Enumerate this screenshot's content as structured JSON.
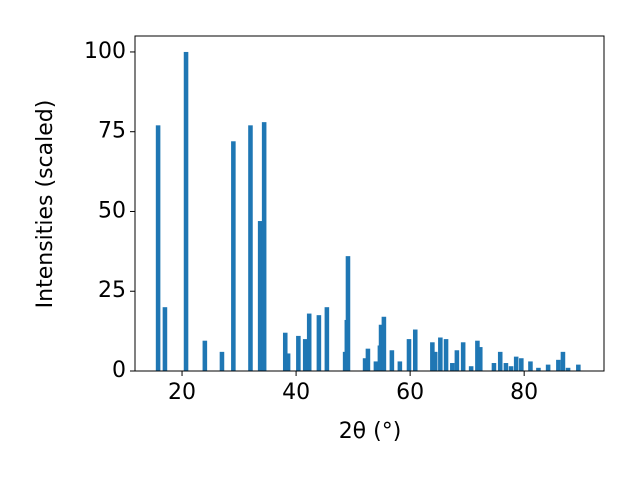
{
  "chart_data": {
    "type": "bar",
    "xlabel": "2θ (°)",
    "ylabel": "Intensities (scaled)",
    "color": "#1f77b4",
    "x": [
      15.8,
      17.0,
      20.7,
      24.0,
      27.0,
      29.0,
      32.0,
      33.7,
      34.4,
      38.1,
      38.6,
      40.4,
      41.6,
      42.3,
      44.0,
      45.4,
      48.6,
      48.9,
      49.1,
      52.1,
      52.6,
      54.0,
      54.7,
      54.9,
      55.4,
      56.8,
      58.2,
      59.8,
      60.9,
      63.9,
      64.4,
      65.3,
      66.3,
      67.4,
      68.2,
      69.3,
      70.7,
      71.8,
      72.3,
      74.7,
      75.8,
      76.8,
      77.7,
      78.6,
      79.5,
      81.1,
      82.5,
      84.2,
      86.0,
      86.8,
      87.7,
      89.5
    ],
    "values": [
      77,
      20,
      100,
      9.5,
      6,
      72,
      77,
      47,
      78,
      12,
      5.5,
      11,
      10,
      18,
      17.5,
      20,
      6,
      16,
      36,
      4,
      7,
      3,
      8,
      14.5,
      17,
      6.5,
      3,
      10,
      13,
      9,
      6,
      10.5,
      10,
      2.5,
      6.5,
      9,
      1.5,
      9.5,
      7.5,
      2.5,
      6,
      2.5,
      1.5,
      4.5,
      4,
      3,
      1,
      2,
      3.5,
      6,
      1,
      2
    ],
    "xlim": [
      11.75,
      94.0
    ],
    "xticks": [
      20,
      40,
      60,
      80
    ],
    "ylim": [
      0,
      105
    ],
    "yticks": [
      0,
      25,
      50,
      75,
      100
    ]
  }
}
